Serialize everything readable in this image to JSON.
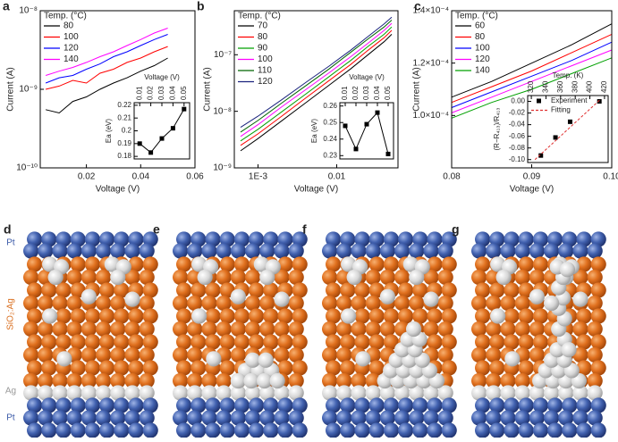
{
  "chart_data": [
    {
      "type": "line",
      "panel": "a",
      "xlabel": "Voltage (V)",
      "ylabel": "Current (A)",
      "ylog": true,
      "xlim": [
        0.003,
        0.06
      ],
      "xticks": [
        0.02,
        0.04,
        0.06
      ],
      "ylim": [
        1e-10,
        1e-08
      ],
      "yticks": [
        {
          "value": 1e-10,
          "label": "10⁻¹⁰"
        },
        {
          "value": 1e-09,
          "label": "10⁻⁹"
        },
        {
          "value": 1e-08,
          "label": "10⁻⁸"
        }
      ],
      "legend_title": "Temp. (°C)",
      "legend": "upper left",
      "x": [
        0.005,
        0.01,
        0.015,
        0.02,
        0.025,
        0.03,
        0.035,
        0.04,
        0.045,
        0.05
      ],
      "series": [
        {
          "name": "80",
          "color": "#000000",
          "values": [
            5.5e-10,
            5e-10,
            7e-10,
            8e-10,
            1e-09,
            1.2e-09,
            1.4e-09,
            1.7e-09,
            2e-09,
            2.5e-09
          ]
        },
        {
          "name": "100",
          "color": "#ff0000",
          "values": [
            1e-09,
            1.1e-09,
            1.3e-09,
            1.2e-09,
            1.6e-09,
            1.8e-09,
            2.2e-09,
            2.5e-09,
            3e-09,
            3.5e-09
          ]
        },
        {
          "name": "120",
          "color": "#0000ff",
          "values": [
            1.2e-09,
            1.4e-09,
            1.5e-09,
            1.8e-09,
            2.1e-09,
            2.6e-09,
            3e-09,
            3.6e-09,
            4.3e-09,
            5e-09
          ]
        },
        {
          "name": "140",
          "color": "#ff00ff",
          "values": [
            1.5e-09,
            1.7e-09,
            1.9e-09,
            2.2e-09,
            2.6e-09,
            3e-09,
            3.6e-09,
            4.3e-09,
            5.2e-09,
            6e-09
          ]
        }
      ]
    },
    {
      "type": "line",
      "xlabel": "Voltage (V)",
      "ylabel": "Ea (eV)",
      "xaxis": "top",
      "marker": "square",
      "xlim": [
        0.005,
        0.055
      ],
      "xticks": [
        0.01,
        0.02,
        0.03,
        0.04,
        0.05
      ],
      "ylim": [
        0.178,
        0.222
      ],
      "yticks": [
        0.18,
        0.19,
        0.2,
        0.21,
        0.22
      ],
      "x": [
        0.01,
        0.02,
        0.03,
        0.04,
        0.05
      ],
      "values": [
        0.19,
        0.183,
        0.194,
        0.202,
        0.217
      ],
      "color": "#000000"
    },
    {
      "type": "line",
      "panel": "b",
      "xlabel": "Voltage (V)",
      "ylabel": "Current (A)",
      "xlog": true,
      "ylog": true,
      "xlim": [
        0.0005,
        0.06
      ],
      "xticks": [
        {
          "value": 0.001,
          "label": "1E-3"
        },
        0.01
      ],
      "ylim": [
        1e-09,
        6e-07
      ],
      "yticks": [
        {
          "value": 1e-09,
          "label": "10⁻⁹"
        },
        {
          "value": 1e-08,
          "label": "10⁻⁸"
        },
        {
          "value": 1e-07,
          "label": "10⁻⁷"
        }
      ],
      "legend_title": "Temp. (°C)",
      "legend": "upper left",
      "x": [
        0.0006,
        0.001,
        0.002,
        0.004,
        0.008,
        0.015,
        0.025,
        0.04,
        0.05
      ],
      "series": [
        {
          "name": "70",
          "color": "#000000",
          "values": [
            2e-09,
            3.3e-09,
            6.8e-09,
            1.4e-08,
            2.9e-08,
            5.6e-08,
            1e-07,
            1.7e-07,
            2.3e-07
          ]
        },
        {
          "name": "80",
          "color": "#ff0000",
          "values": [
            2.5e-09,
            4e-09,
            8.2e-09,
            1.7e-08,
            3.5e-08,
            6.7e-08,
            1.2e-07,
            2e-07,
            2.7e-07
          ]
        },
        {
          "name": "90",
          "color": "#00a000",
          "values": [
            3e-09,
            4.8e-09,
            9.8e-09,
            2e-08,
            4.1e-08,
            7.9e-08,
            1.4e-07,
            2.3e-07,
            3.1e-07
          ]
        },
        {
          "name": "100",
          "color": "#ff00ff",
          "values": [
            3.6e-09,
            5.8e-09,
            1.2e-08,
            2.4e-08,
            4.8e-08,
            9.2e-08,
            1.6e-07,
            2.7e-07,
            3.6e-07
          ]
        },
        {
          "name": "110",
          "color": "#006400",
          "values": [
            4.3e-09,
            6.9e-09,
            1.4e-08,
            2.8e-08,
            5.6e-08,
            1.1e-07,
            1.9e-07,
            3.1e-07,
            4.1e-07
          ]
        },
        {
          "name": "120",
          "color": "#1a237e",
          "values": [
            5.2e-09,
            8.2e-09,
            1.6e-08,
            3.2e-08,
            6.3e-08,
            1.2e-07,
            2.1e-07,
            3.5e-07,
            4.6e-07
          ]
        }
      ]
    },
    {
      "type": "line",
      "xlabel": "Voltage (V)",
      "ylabel": "Ea (eV)",
      "xaxis": "top",
      "marker": "square",
      "xlim": [
        0.005,
        0.055
      ],
      "xticks": [
        0.01,
        0.02,
        0.03,
        0.04,
        0.05
      ],
      "ylim": [
        0.228,
        0.262
      ],
      "yticks": [
        0.23,
        0.24,
        0.25,
        0.26
      ],
      "x": [
        0.01,
        0.02,
        0.03,
        0.04,
        0.05
      ],
      "values": [
        0.248,
        0.234,
        0.249,
        0.256,
        0.231
      ],
      "color": "#000000"
    },
    {
      "type": "line",
      "panel": "c",
      "xlabel": "Voltage (V)",
      "ylabel": "Current (A)",
      "xlim": [
        0.08,
        0.1
      ],
      "xticks": [
        0.08,
        0.09,
        {
          "value": 0.1,
          "label": "0.10"
        }
      ],
      "ylim": [
        8e-05,
        0.00014
      ],
      "yticks": [
        {
          "value": 0.0001,
          "label": "1.0×10⁻⁴"
        },
        {
          "value": 0.00012,
          "label": "1.2×10⁻⁴"
        },
        {
          "value": 0.00014,
          "label": "1.4×10⁻⁴"
        }
      ],
      "legend_title": "Temp. (°C)",
      "legend": "upper left",
      "x": [
        0.08,
        0.085,
        0.09,
        0.095,
        0.1
      ],
      "series": [
        {
          "name": "60",
          "color": "#000000",
          "values": [
            0.000107,
            0.000113,
            0.00012,
            0.000127,
            0.000135
          ]
        },
        {
          "name": "80",
          "color": "#ff0000",
          "values": [
            0.000105,
            0.000111,
            0.000117,
            0.000124,
            0.000131
          ]
        },
        {
          "name": "100",
          "color": "#0000ff",
          "values": [
            0.000103,
            0.000109,
            0.000115,
            0.000121,
            0.000128
          ]
        },
        {
          "name": "120",
          "color": "#ff00ff",
          "values": [
            0.000101,
            0.000107,
            0.000113,
            0.000119,
            0.000125
          ]
        },
        {
          "name": "140",
          "color": "#00a000",
          "values": [
            9.9e-05,
            0.000105,
            0.00011,
            0.000116,
            0.000122
          ]
        }
      ]
    },
    {
      "type": "scatter",
      "xlabel": "Temp. (K)",
      "ylabel": "(R−R₄₁₃)/R₄₁₃",
      "xaxis": "top",
      "legend": "upper left",
      "xlim": [
        315,
        425
      ],
      "xticks": [
        320,
        340,
        360,
        380,
        400,
        420
      ],
      "ylim": [
        -0.105,
        0.01
      ],
      "yticks": [
        {
          "value": 0,
          "label": "0.00"
        },
        -0.02,
        -0.04,
        -0.06,
        -0.08,
        {
          "value": -0.1,
          "label": "-0.10"
        }
      ],
      "series": [
        {
          "name": "Experiment",
          "color": "#000000",
          "marker": "square",
          "line": false,
          "x": [
            333,
            353,
            373,
            413
          ],
          "values": [
            -0.093,
            -0.062,
            -0.035,
            0
          ]
        },
        {
          "name": "Fitting",
          "color": "#e03030",
          "dash": true,
          "x": [
            325,
            415
          ],
          "values": [
            -0.1,
            0.004
          ]
        }
      ]
    }
  ],
  "diagrams": {
    "panels": [
      "d",
      "e",
      "f",
      "g"
    ],
    "layer_labels": [
      "Pt",
      "SiO₂:Ag",
      "Ag",
      "Pt"
    ]
  }
}
